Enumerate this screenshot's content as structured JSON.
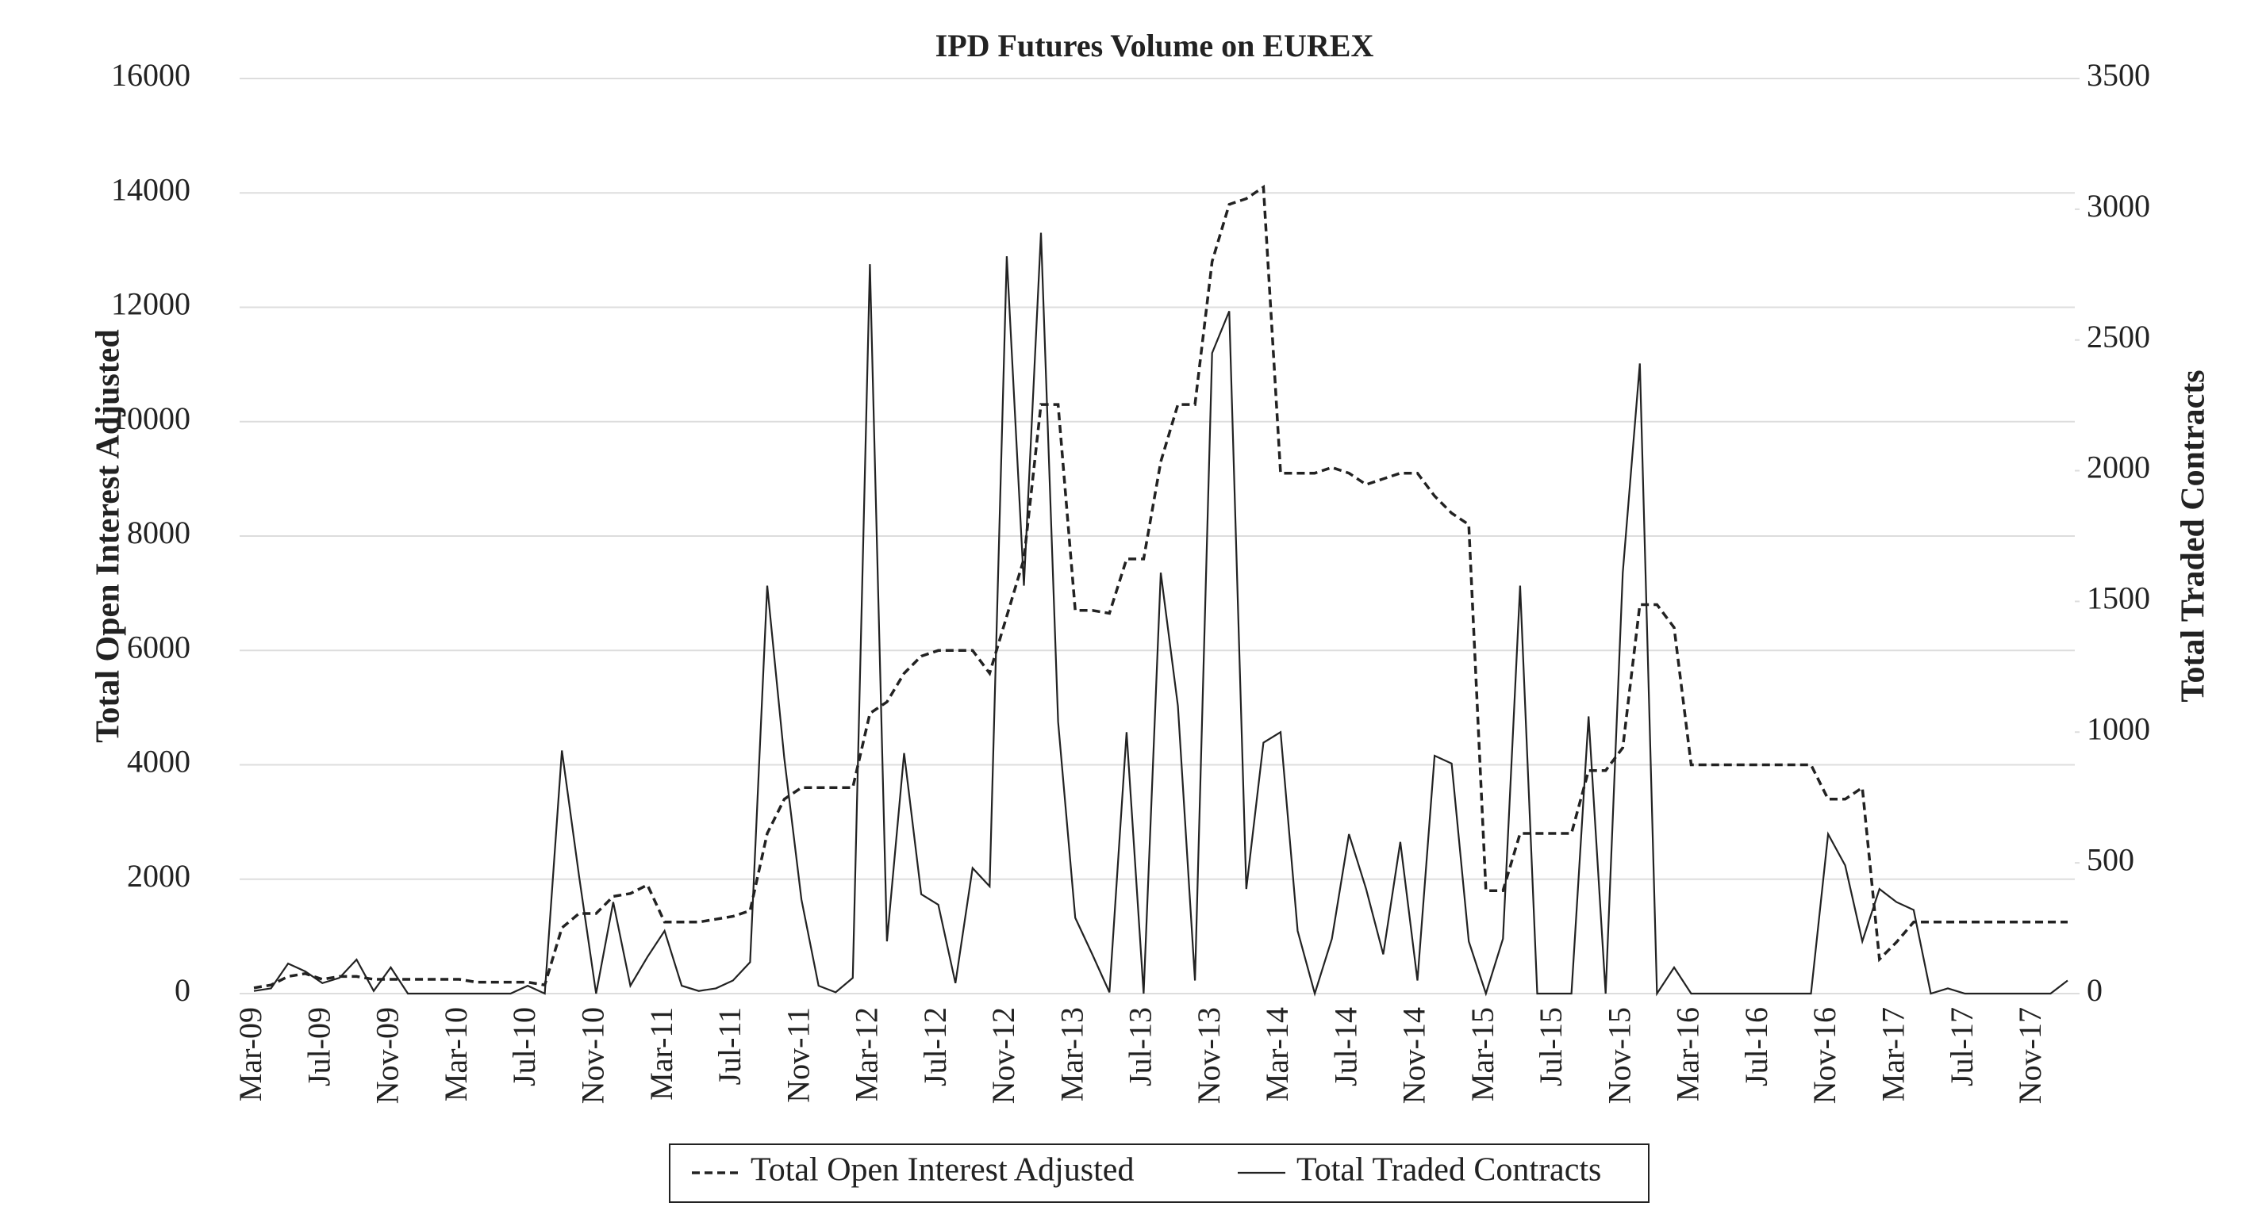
{
  "chart_data": {
    "type": "line",
    "title": "IPD Futures Volume on EUREX",
    "y_label": "Total Open Interest Adjusted",
    "y2_label": "Total Traded Contracts",
    "categories": [
      "Mar-09",
      null,
      null,
      null,
      "Jul-09",
      null,
      null,
      null,
      "Nov-09",
      null,
      null,
      null,
      "Mar-10",
      null,
      null,
      null,
      "Jul-10",
      null,
      null,
      null,
      "Nov-10",
      null,
      null,
      null,
      "Mar-11",
      null,
      null,
      null,
      "Jul-11",
      null,
      null,
      null,
      "Nov-11",
      null,
      null,
      null,
      "Mar-12",
      null,
      null,
      null,
      "Jul-12",
      null,
      null,
      null,
      "Nov-12",
      null,
      null,
      null,
      "Mar-13",
      null,
      null,
      null,
      "Jul-13",
      null,
      null,
      null,
      "Nov-13",
      null,
      null,
      null,
      "Mar-14",
      null,
      null,
      null,
      "Jul-14",
      null,
      null,
      null,
      "Nov-14",
      null,
      null,
      null,
      "Mar-15",
      null,
      null,
      null,
      "Jul-15",
      null,
      null,
      null,
      "Nov-15",
      null,
      null,
      null,
      "Mar-16",
      null,
      null,
      null,
      "Jul-16",
      null,
      null,
      null,
      "Nov-16",
      null,
      null,
      null,
      "Mar-17",
      null,
      null,
      null,
      "Jul-17",
      null,
      null,
      null,
      "Nov-17",
      null,
      null
    ],
    "series": [
      {
        "name": "Total Open Interest Adjusted",
        "color": "#222222",
        "dash": "dashed",
        "axis": "y",
        "values": [
          100,
          150,
          300,
          350,
          250,
          300,
          300,
          250,
          250,
          250,
          250,
          250,
          250,
          200,
          200,
          200,
          200,
          150,
          1150,
          1400,
          1400,
          1700,
          1750,
          1900,
          1250,
          1250,
          1250,
          1300,
          1350,
          1450,
          2800,
          3400,
          3600,
          3600,
          3600,
          3600,
          4900,
          5100,
          5600,
          5900,
          6000,
          6000,
          6000,
          5600,
          6600,
          7600,
          10300,
          10300,
          6700,
          6700,
          6650,
          7600,
          7600,
          9300,
          10300,
          10300,
          12800,
          13800,
          13900,
          14100,
          9100,
          9100,
          9100,
          9200,
          9100,
          8900,
          9000,
          9100,
          9100,
          8700,
          8400,
          8200,
          1800,
          1800,
          2800,
          2800,
          2800,
          2800,
          3900,
          3900,
          4300,
          6800,
          6800,
          6400,
          4000,
          4000,
          4000,
          4000,
          4000,
          4000,
          4000,
          4000,
          3400,
          3400,
          3600,
          600,
          900,
          1250,
          1250,
          1250,
          1250,
          1250,
          1250,
          1250,
          1250,
          1250,
          1250
        ]
      },
      {
        "name": "Total Traded Contracts",
        "color": "#222222",
        "dash": "solid",
        "axis": "y2",
        "values": [
          10,
          20,
          115,
          85,
          40,
          60,
          130,
          10,
          100,
          0,
          0,
          0,
          0,
          0,
          0,
          0,
          30,
          0,
          930,
          450,
          0,
          350,
          30,
          140,
          240,
          30,
          10,
          20,
          50,
          120,
          1560,
          900,
          360,
          30,
          5,
          60,
          2790,
          200,
          920,
          380,
          340,
          40,
          480,
          410,
          2820,
          1560,
          2910,
          1040,
          290,
          150,
          5,
          1000,
          0,
          1610,
          1100,
          50,
          2450,
          2610,
          400,
          960,
          1000,
          240,
          0,
          210,
          610,
          400,
          150,
          580,
          50,
          910,
          880,
          200,
          0,
          210,
          1560,
          0,
          0,
          0,
          1060,
          0,
          1610,
          2410,
          0,
          100,
          0,
          0,
          0,
          0,
          0,
          0,
          0,
          0,
          610,
          490,
          200,
          400,
          350,
          320,
          0,
          20,
          0,
          0,
          0,
          0,
          0,
          0,
          50
        ]
      }
    ],
    "ylim": [
      0,
      16000
    ],
    "yticks": [
      0,
      2000,
      4000,
      6000,
      8000,
      10000,
      12000,
      14000,
      16000
    ],
    "y2lim": [
      0,
      3500
    ],
    "y2ticks": [
      0,
      500,
      1000,
      1500,
      2000,
      2500,
      3000,
      3500
    ],
    "grid": true,
    "legend": "bottom"
  }
}
